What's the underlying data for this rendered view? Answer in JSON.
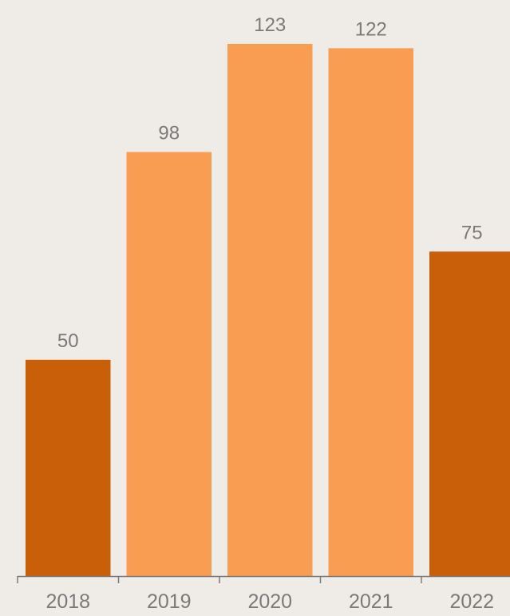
{
  "chart_data": {
    "type": "bar",
    "title": "",
    "xlabel": "",
    "ylabel": "",
    "categories": [
      "2018",
      "2019",
      "2020",
      "2021",
      "2022"
    ],
    "values": [
      50,
      98,
      123,
      122,
      75
    ],
    "data_labels": [
      "50",
      "98",
      "123",
      "122",
      "75"
    ],
    "ylim": [
      0,
      123
    ],
    "grid": false,
    "legend": "none",
    "colors": {
      "background": "#efebe7",
      "highlight_bar": "#c95f09",
      "bar": "#f89d51",
      "axis": "#7a7a7a",
      "label": "#7a7a7a"
    },
    "bar_colors": [
      "highlight_bar",
      "bar",
      "bar",
      "bar",
      "highlight_bar"
    ]
  }
}
